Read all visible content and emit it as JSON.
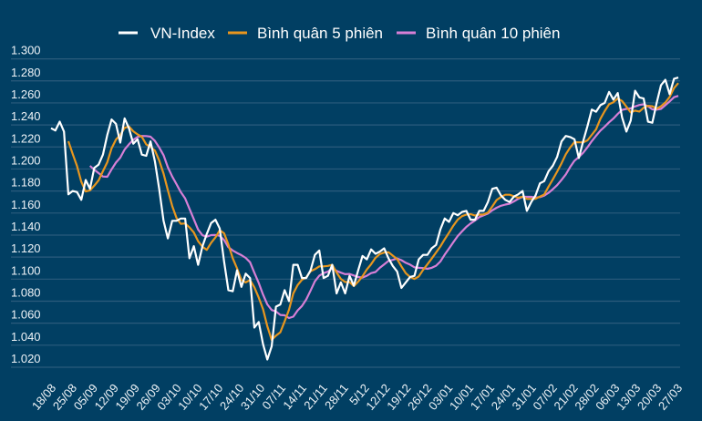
{
  "chart_data": {
    "type": "line",
    "title": "",
    "xlabel": "",
    "ylabel": "",
    "ylim": [
      1.02,
      1.3
    ],
    "yticks": [
      "1.020",
      "1.040",
      "1.060",
      "1.080",
      "1.100",
      "1.120",
      "1.140",
      "1.160",
      "1.180",
      "1.200",
      "1.220",
      "1.240",
      "1.260",
      "1.280",
      "1.300"
    ],
    "xticks": [
      "18/08",
      "25/08",
      "05/09",
      "12/09",
      "19/09",
      "26/09",
      "03/10",
      "10/10",
      "17/10",
      "24/10",
      "31/10",
      "07/11",
      "14/11",
      "21/11",
      "28/11",
      "5/12",
      "12/12",
      "19/12",
      "26/12",
      "03/01",
      "10/01",
      "17/01",
      "24/01",
      "31/01",
      "07/02",
      "21/02",
      "28/02",
      "06/03",
      "13/03",
      "20/03",
      "27/03"
    ],
    "grid": true,
    "legend_position": "top-center",
    "series": [
      {
        "name": "VN-Index",
        "color": "#ffffff",
        "type": "raw",
        "values": [
          1.237,
          1.235,
          1.243,
          1.234,
          1.177,
          1.18,
          1.179,
          1.172,
          1.19,
          1.182,
          1.201,
          1.204,
          1.213,
          1.231,
          1.245,
          1.241,
          1.224,
          1.246,
          1.237,
          1.223,
          1.227,
          1.213,
          1.212,
          1.225,
          1.207,
          1.182,
          1.153,
          1.137,
          1.153,
          1.153,
          1.155,
          1.155,
          1.119,
          1.13,
          1.113,
          1.13,
          1.141,
          1.151,
          1.154,
          1.146,
          1.116,
          1.09,
          1.089,
          1.108,
          1.093,
          1.105,
          1.101,
          1.056,
          1.061,
          1.041,
          1.027,
          1.039,
          1.075,
          1.077,
          1.09,
          1.08,
          1.113,
          1.113,
          1.101,
          1.101,
          1.108,
          1.122,
          1.126,
          1.101,
          1.103,
          1.113,
          1.087,
          1.097,
          1.087,
          1.103,
          1.094,
          1.108,
          1.121,
          1.118,
          1.127,
          1.123,
          1.125,
          1.128,
          1.119,
          1.112,
          1.107,
          1.092,
          1.097,
          1.102,
          1.103,
          1.118,
          1.122,
          1.122,
          1.128,
          1.131,
          1.145,
          1.155,
          1.152,
          1.16,
          1.158,
          1.161,
          1.162,
          1.154,
          1.154,
          1.162,
          1.162,
          1.17,
          1.182,
          1.183,
          1.176,
          1.172,
          1.17,
          1.175,
          1.177,
          1.18,
          1.162,
          1.17,
          1.176,
          1.187,
          1.189,
          1.198,
          1.203,
          1.211,
          1.225,
          1.23,
          1.229,
          1.227,
          1.21,
          1.225,
          1.239,
          1.254,
          1.252,
          1.258,
          1.26,
          1.27,
          1.263,
          1.269,
          1.247,
          1.234,
          1.244,
          1.271,
          1.265,
          1.264,
          1.243,
          1.242,
          1.26,
          1.276,
          1.281,
          1.268,
          1.282,
          1.283
        ]
      },
      {
        "name": "Bình quân 5 phiên",
        "color": "#e8961e",
        "type": "moving_average",
        "window": 5,
        "source": "VN-Index"
      },
      {
        "name": "Bình quân 10 phiên",
        "color": "#d77fd6",
        "type": "moving_average",
        "window": 10,
        "source": "VN-Index"
      }
    ]
  }
}
